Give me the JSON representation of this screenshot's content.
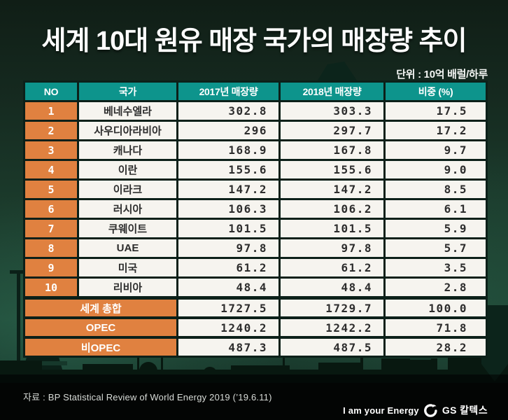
{
  "title": "세계 10대 원유 매장 국가의 매장량 추이",
  "unit_label": "단위 : 10억 배럴/하루",
  "source_note": "자료 : BP Statistical Review of World Energy 2019 (’19.6.11)",
  "footer": {
    "slogan": "I am your Energy",
    "brand_name": "GS 칼텍스",
    "logo_icon": "gs-caltex-circle-swoosh"
  },
  "colors": {
    "background_green": "#1d4434",
    "header_teal": "#0d948c",
    "accent_orange": "#e08140",
    "cell_offwhite": "#f6f4ef",
    "grid_dark": "#0c2019",
    "text_dark": "#2d2d2d"
  },
  "chart_data": {
    "type": "table",
    "title": "세계 10대 원유 매장 국가의 매장량 추이",
    "unit": "10억 배럴/하루",
    "columns": [
      "NO",
      "국가",
      "2017년 매장량",
      "2018년 매장량",
      "비중 (%)"
    ],
    "rows": [
      {
        "no": "1",
        "country": "베네수엘라",
        "y2017": "302.8",
        "y2018": "303.3",
        "share": "17.5"
      },
      {
        "no": "2",
        "country": "사우디아라비아",
        "y2017": "296",
        "y2018": "297.7",
        "share": "17.2"
      },
      {
        "no": "3",
        "country": "캐나다",
        "y2017": "168.9",
        "y2018": "167.8",
        "share": "9.7"
      },
      {
        "no": "4",
        "country": "이란",
        "y2017": "155.6",
        "y2018": "155.6",
        "share": "9.0"
      },
      {
        "no": "5",
        "country": "이라크",
        "y2017": "147.2",
        "y2018": "147.2",
        "share": "8.5"
      },
      {
        "no": "6",
        "country": "러시아",
        "y2017": "106.3",
        "y2018": "106.2",
        "share": "6.1"
      },
      {
        "no": "7",
        "country": "쿠웨이트",
        "y2017": "101.5",
        "y2018": "101.5",
        "share": "5.9"
      },
      {
        "no": "8",
        "country": "UAE",
        "y2017": "97.8",
        "y2018": "97.8",
        "share": "5.7"
      },
      {
        "no": "9",
        "country": "미국",
        "y2017": "61.2",
        "y2018": "61.2",
        "share": "3.5"
      },
      {
        "no": "10",
        "country": "리비아",
        "y2017": "48.4",
        "y2018": "48.4",
        "share": "2.8"
      }
    ],
    "summary_rows": [
      {
        "label": "세계 총합",
        "y2017": "1727.5",
        "y2018": "1729.7",
        "share": "100.0"
      },
      {
        "label": "OPEC",
        "y2017": "1240.2",
        "y2018": "1242.2",
        "share": "71.8"
      },
      {
        "label": "비OPEC",
        "y2017": "487.3",
        "y2018": "487.5",
        "share": "28.2"
      }
    ]
  }
}
